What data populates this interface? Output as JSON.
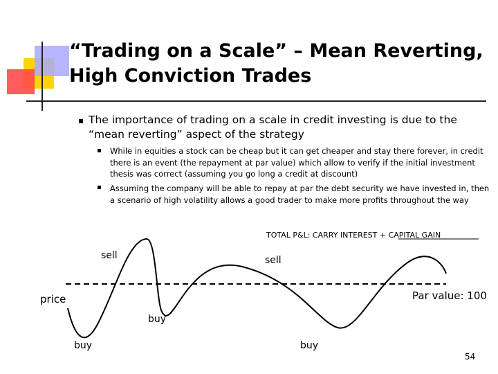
{
  "title": "“Trading on a Scale” – Mean Reverting, High Conviction Trades",
  "bullets": {
    "main": "The importance of trading on a scale in credit investing is due to the “mean reverting” aspect of the strategy",
    "sub": [
      "While in equities a stock can be cheap but it can get cheaper and stay there forever, in credit there is an event (the repayment at par value) which allow to verify if the initial investment thesis was correct (assuming you go long a credit at discount)",
      "Assuming the company will be able to repay at par the debt security we have invested in, then a scenario of high volatility allows a good trader to make more profits throughout the way"
    ]
  },
  "diagram": {
    "total_label": "TOTAL P&L: CARRY INTEREST + CAPITAL GAIN",
    "par_label": "Par value: 100",
    "price_label": "price",
    "sell_1": "sell",
    "sell_2": "sell",
    "buy_1": "buy",
    "buy_2": "buy",
    "buy_3": "buy"
  },
  "page_number": "54",
  "colors": {
    "deco_yellow": "#ffd400",
    "deco_red": "#ff4a4a",
    "deco_blue": "#a9a9ff"
  }
}
